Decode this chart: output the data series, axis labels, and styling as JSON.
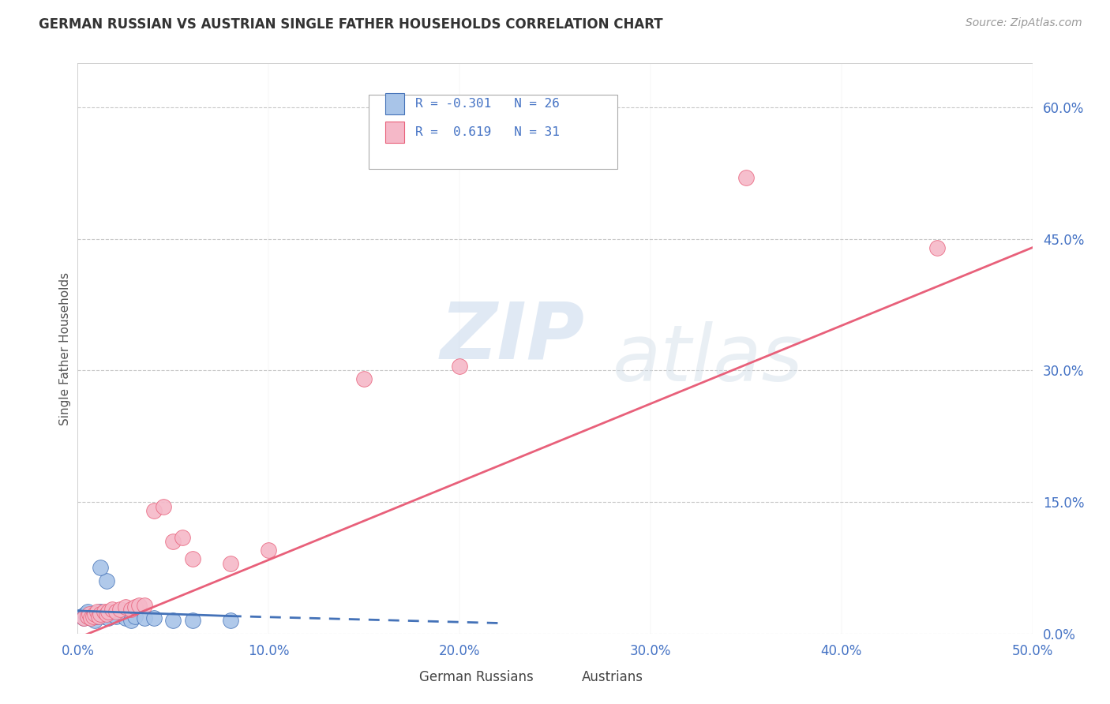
{
  "title": "GERMAN RUSSIAN VS AUSTRIAN SINGLE FATHER HOUSEHOLDS CORRELATION CHART",
  "source": "Source: ZipAtlas.com",
  "ylabel": "Single Father Households",
  "watermark_zip": "ZIP",
  "watermark_atlas": "atlas",
  "legend_r_blue": "-0.301",
  "legend_n_blue": "26",
  "legend_r_pink": "0.619",
  "legend_n_pink": "31",
  "blue_scatter_color": "#a8c4e8",
  "pink_scatter_color": "#f5b8c8",
  "blue_line_color": "#4472b8",
  "pink_line_color": "#e8607a",
  "grid_color": "#c8c8c8",
  "tick_color": "#4472c4",
  "title_color": "#333333",
  "source_color": "#999999",
  "ylabel_color": "#555555",
  "xlim": [
    0.0,
    0.5
  ],
  "ylim": [
    0.0,
    0.65
  ],
  "xticks": [
    0.0,
    0.1,
    0.2,
    0.3,
    0.4,
    0.5
  ],
  "yticks": [
    0.0,
    0.15,
    0.3,
    0.45,
    0.6
  ],
  "gr_x": [
    0.002,
    0.003,
    0.004,
    0.005,
    0.006,
    0.007,
    0.008,
    0.009,
    0.01,
    0.011,
    0.012,
    0.014,
    0.016,
    0.018,
    0.02,
    0.022,
    0.025,
    0.028,
    0.03,
    0.035,
    0.04,
    0.05,
    0.06,
    0.08,
    0.015,
    0.012
  ],
  "gr_y": [
    0.02,
    0.018,
    0.022,
    0.025,
    0.02,
    0.018,
    0.022,
    0.015,
    0.02,
    0.022,
    0.025,
    0.02,
    0.018,
    0.022,
    0.02,
    0.025,
    0.018,
    0.015,
    0.02,
    0.018,
    0.018,
    0.015,
    0.015,
    0.015,
    0.06,
    0.075
  ],
  "au_x": [
    0.003,
    0.005,
    0.006,
    0.007,
    0.008,
    0.009,
    0.01,
    0.011,
    0.012,
    0.014,
    0.015,
    0.016,
    0.018,
    0.02,
    0.022,
    0.025,
    0.028,
    0.03,
    0.032,
    0.035,
    0.04,
    0.045,
    0.05,
    0.055,
    0.06,
    0.08,
    0.1,
    0.15,
    0.2,
    0.35,
    0.45
  ],
  "au_y": [
    0.018,
    0.02,
    0.022,
    0.018,
    0.02,
    0.022,
    0.025,
    0.02,
    0.022,
    0.025,
    0.022,
    0.025,
    0.028,
    0.025,
    0.028,
    0.03,
    0.028,
    0.03,
    0.032,
    0.032,
    0.14,
    0.145,
    0.105,
    0.11,
    0.085,
    0.08,
    0.095,
    0.29,
    0.305,
    0.52,
    0.44
  ],
  "pink_line_x0": 0.0,
  "pink_line_y0": -0.005,
  "pink_line_x1": 0.5,
  "pink_line_y1": 0.44,
  "blue_line_solid_x0": 0.0,
  "blue_line_solid_y0": 0.026,
  "blue_line_solid_x1": 0.08,
  "blue_line_solid_y1": 0.02,
  "blue_line_dash_x0": 0.08,
  "blue_line_dash_y0": 0.02,
  "blue_line_dash_x1": 0.22,
  "blue_line_dash_y1": 0.012
}
